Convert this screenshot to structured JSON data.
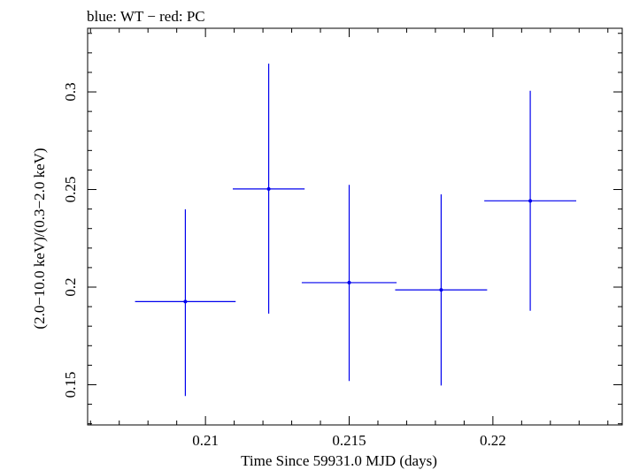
{
  "chart_data": {
    "type": "scatter",
    "title": "blue: WT − red: PC",
    "xlabel": "Time Since 59931.0 MJD (days)",
    "ylabel": "(2.0−10.0 keV)/(0.3−2.0 keV)",
    "xlim": [
      0.2059,
      0.2245
    ],
    "ylim": [
      0.1294,
      0.3326
    ],
    "x_ticks": [
      {
        "value": 0.21,
        "label": "0.21"
      },
      {
        "value": 0.215,
        "label": "0.215"
      },
      {
        "value": 0.22,
        "label": "0.22"
      }
    ],
    "y_ticks": [
      {
        "value": 0.15,
        "label": "0.15"
      },
      {
        "value": 0.2,
        "label": "0.2"
      },
      {
        "value": 0.25,
        "label": "0.25"
      },
      {
        "value": 0.3,
        "label": "0.3"
      }
    ],
    "grid": false,
    "series": [
      {
        "name": "WT",
        "color": "#0000ee",
        "points": [
          {
            "x": 0.2093,
            "xerr": 0.00175,
            "y": 0.1926,
            "ylo": 0.1442,
            "yhi": 0.2399
          },
          {
            "x": 0.2122,
            "xerr": 0.00125,
            "y": 0.2503,
            "ylo": 0.1864,
            "yhi": 0.3145
          },
          {
            "x": 0.215,
            "xerr": 0.00165,
            "y": 0.2023,
            "ylo": 0.1519,
            "yhi": 0.2524
          },
          {
            "x": 0.2182,
            "xerr": 0.0016,
            "y": 0.1986,
            "ylo": 0.1496,
            "yhi": 0.2475
          },
          {
            "x": 0.2213,
            "xerr": 0.0016,
            "y": 0.2442,
            "ylo": 0.1879,
            "yhi": 0.3006
          }
        ]
      }
    ]
  }
}
